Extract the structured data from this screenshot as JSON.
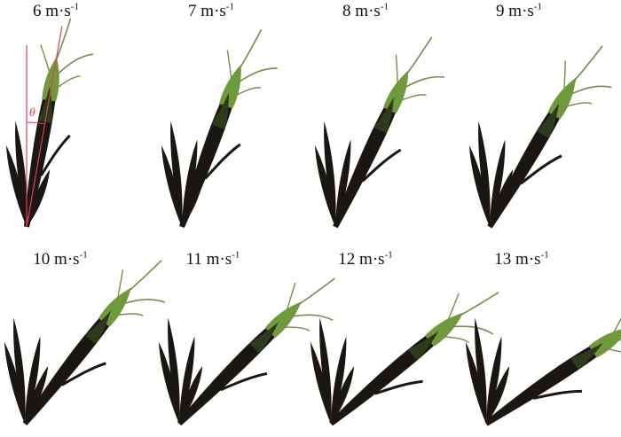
{
  "figure": {
    "panels": [
      {
        "speed": "6",
        "unit": "m·s",
        "exp": "-1",
        "annotation": "θ"
      },
      {
        "speed": "7",
        "unit": "m·s",
        "exp": "-1"
      },
      {
        "speed": "8",
        "unit": "m·s",
        "exp": "-1"
      },
      {
        "speed": "9",
        "unit": "m·s",
        "exp": "-1"
      },
      {
        "speed": "10",
        "unit": "m·s",
        "exp": "-1"
      },
      {
        "speed": "11",
        "unit": "m·s",
        "exp": "-1"
      },
      {
        "speed": "12",
        "unit": "m·s",
        "exp": "-1"
      },
      {
        "speed": "13",
        "unit": "m·s",
        "exp": "-1"
      }
    ],
    "colors": {
      "plant_dark": "#1a1612",
      "plant_green": "#6f9a3c",
      "annotation": "#e0405a"
    }
  }
}
